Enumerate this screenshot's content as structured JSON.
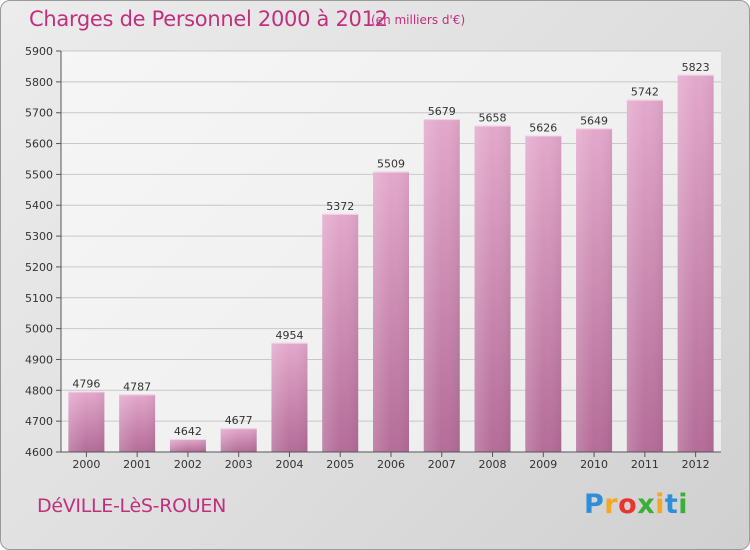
{
  "header": {
    "title": "Charges de Personnel 2000 à 2012",
    "subtitle": "(en milliers d'€)"
  },
  "footer": {
    "location": "DéVILLE-LèS-ROUEN",
    "logo_text": "Proxiti",
    "logo_colors": [
      "#2e8fd8",
      "#f5a623",
      "#e8352e",
      "#3cae3a",
      "#f5a623",
      "#2e8fd8",
      "#3cae3a"
    ]
  },
  "chart_data": {
    "type": "bar",
    "title": "Charges de Personnel 2000 à 2012",
    "subtitle": "(en milliers d'€)",
    "xlabel": "",
    "ylabel": "",
    "categories": [
      "2000",
      "2001",
      "2002",
      "2003",
      "2004",
      "2005",
      "2006",
      "2007",
      "2008",
      "2009",
      "2010",
      "2011",
      "2012"
    ],
    "values": [
      4796,
      4787,
      4642,
      4677,
      4954,
      5372,
      5509,
      5679,
      5658,
      5626,
      5649,
      5742,
      5823
    ],
    "ylim": [
      4600,
      5900
    ],
    "yticks": [
      4600,
      4700,
      4800,
      4900,
      5000,
      5100,
      5200,
      5300,
      5400,
      5500,
      5600,
      5700,
      5800,
      5900
    ],
    "grid": true,
    "bar_color": "#d98cb8",
    "label_color": "#333333"
  }
}
